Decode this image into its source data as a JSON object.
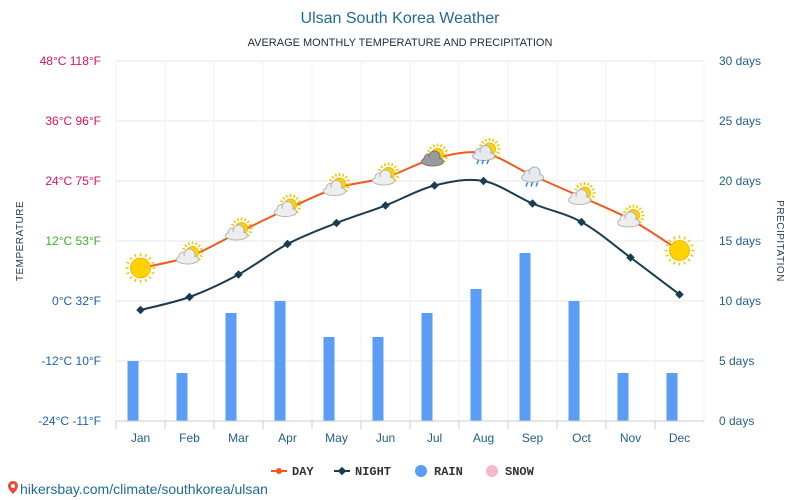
{
  "chart_data": {
    "type": "line",
    "title": "Ulsan South Korea Weather",
    "subtitle": "AVERAGE MONTHLY TEMPERATURE AND PRECIPITATION",
    "ylabel_left": "TEMPERATURE",
    "ylabel_right": "PRECIPITATION",
    "categories": [
      "Jan",
      "Feb",
      "Mar",
      "Apr",
      "May",
      "Jun",
      "Jul",
      "Aug",
      "Sep",
      "Oct",
      "Nov",
      "Dec"
    ],
    "ylim_left": [
      -24,
      48
    ],
    "ylim_right": [
      0,
      30
    ],
    "left_ticks": [
      {
        "value": 48,
        "label": "48°C 118°F",
        "color": "#e0105f"
      },
      {
        "value": 36,
        "label": "36°C 96°F",
        "color": "#e0105f"
      },
      {
        "value": 24,
        "label": "24°C 75°F",
        "color": "#e0105f"
      },
      {
        "value": 12,
        "label": "12°C 53°F",
        "color": "#3dae2b"
      },
      {
        "value": 0,
        "label": "0°C 32°F",
        "color": "#1f5fb4"
      },
      {
        "value": -12,
        "label": "-12°C 10°F",
        "color": "#1f5fb4"
      },
      {
        "value": -24,
        "label": "-24°C -11°F",
        "color": "#1f5fb4"
      }
    ],
    "right_ticks": [
      {
        "value": 30,
        "label": "30 days"
      },
      {
        "value": 25,
        "label": "25 days"
      },
      {
        "value": 20,
        "label": "20 days"
      },
      {
        "value": 15,
        "label": "15 days"
      },
      {
        "value": 10,
        "label": "10 days"
      },
      {
        "value": 5,
        "label": "5 days"
      },
      {
        "value": 0,
        "label": "0 days"
      }
    ],
    "series": [
      {
        "name": "DAY",
        "kind": "line",
        "axis": "left",
        "color": "#f25a1d",
        "values": [
          6.6,
          8.9,
          13.7,
          18.4,
          22.6,
          24.7,
          28.5,
          29.6,
          25.1,
          20.8,
          16.3,
          10.1
        ]
      },
      {
        "name": "NIGHT",
        "kind": "line",
        "axis": "left",
        "color": "#1a3c50",
        "values": [
          -1.8,
          0.8,
          5.3,
          11.4,
          15.6,
          19.1,
          23.1,
          24.0,
          19.5,
          15.8,
          8.7,
          1.3
        ]
      },
      {
        "name": "RAIN",
        "kind": "bar",
        "axis": "right",
        "color": "#5b9cf5",
        "values": [
          5,
          4,
          9,
          10,
          7,
          7,
          9,
          11,
          14,
          10,
          4,
          4
        ]
      },
      {
        "name": "SNOW",
        "kind": "bar",
        "axis": "right",
        "color": "#f7b8c8",
        "values": [
          0,
          0,
          0,
          0,
          0,
          0,
          0,
          0,
          0,
          0,
          0,
          0
        ]
      }
    ],
    "weather_icons": [
      "sun",
      "partly-cloudy",
      "partly-cloudy",
      "partly-cloudy",
      "partly-cloudy",
      "partly-cloudy",
      "partly-cloudy-storm",
      "sun-cloud-rain",
      "cloud-rain",
      "partly-cloudy",
      "partly-cloudy",
      "sun"
    ],
    "grid": true,
    "legend_position": "bottom-center"
  },
  "footer": {
    "text": "hikersbay.com/climate/southkorea/ulsan",
    "icon": "map-pin-icon"
  }
}
